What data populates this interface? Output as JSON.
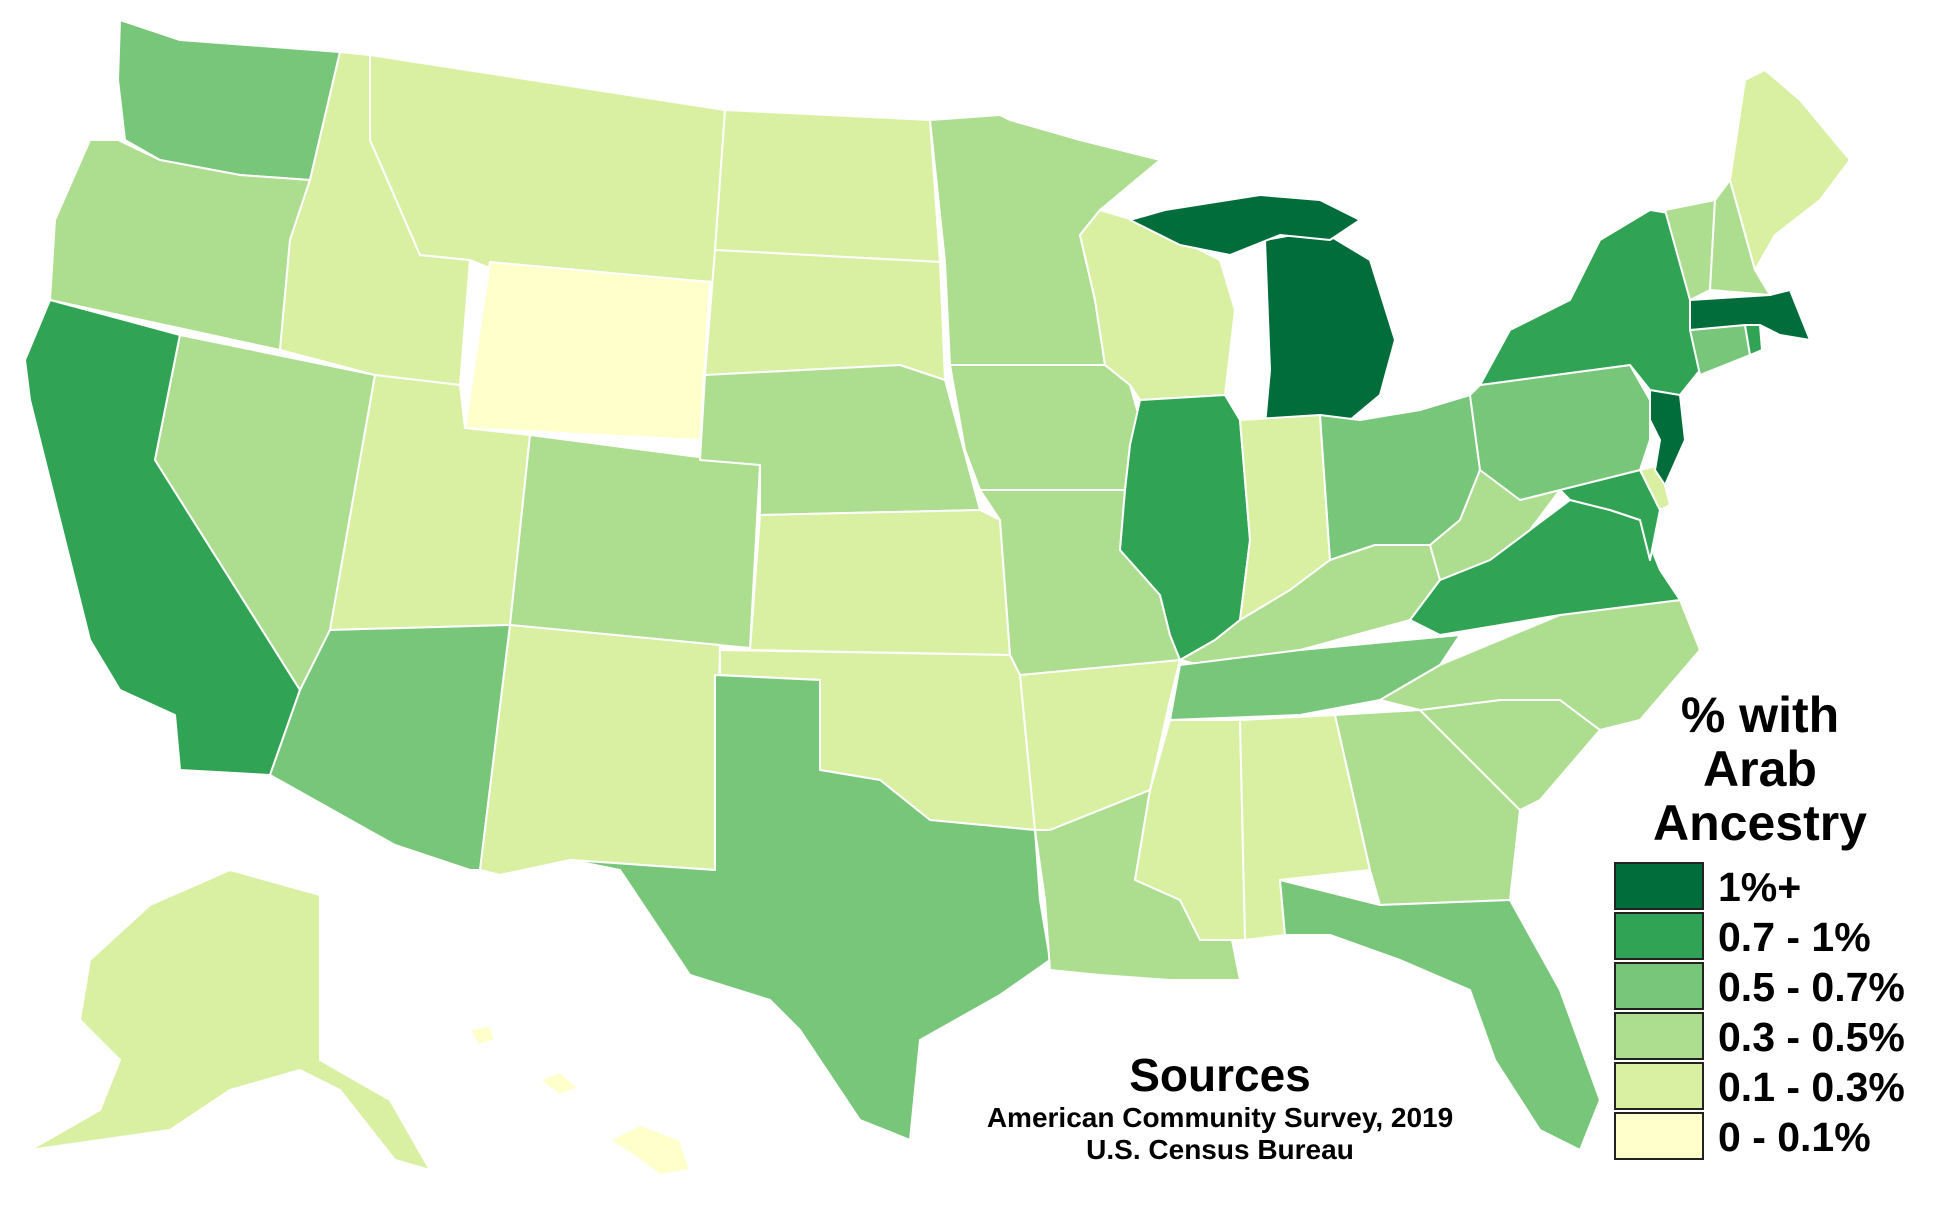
{
  "legend": {
    "title_lines": [
      "% with",
      "Arab",
      "Ancestry"
    ],
    "classes": [
      {
        "label": "1%+",
        "color": "#006d3a"
      },
      {
        "label": "0.7 - 1%",
        "color": "#31a354"
      },
      {
        "label": "0.5 - 0.7%",
        "color": "#78c679"
      },
      {
        "label": "0.3 - 0.5%",
        "color": "#addd8e"
      },
      {
        "label": "0.1 - 0.3%",
        "color": "#d9f0a3"
      },
      {
        "label": "0 - 0.1%",
        "color": "#ffffcc"
      }
    ]
  },
  "sources": {
    "title": "Sources",
    "lines": [
      "American Community Survey, 2019",
      "U.S. Census Bureau"
    ]
  },
  "states": [
    {
      "name": "Washington",
      "class": "0.5 - 0.7%"
    },
    {
      "name": "Oregon",
      "class": "0.3 - 0.5%"
    },
    {
      "name": "California",
      "class": "0.7 - 1%"
    },
    {
      "name": "Nevada",
      "class": "0.3 - 0.5%"
    },
    {
      "name": "Idaho",
      "class": "0.1 - 0.3%"
    },
    {
      "name": "Montana",
      "class": "0.1 - 0.3%"
    },
    {
      "name": "Wyoming",
      "class": "0 - 0.1%"
    },
    {
      "name": "Utah",
      "class": "0.1 - 0.3%"
    },
    {
      "name": "Arizona",
      "class": "0.5 - 0.7%"
    },
    {
      "name": "Colorado",
      "class": "0.3 - 0.5%"
    },
    {
      "name": "New Mexico",
      "class": "0.1 - 0.3%"
    },
    {
      "name": "North Dakota",
      "class": "0.1 - 0.3%"
    },
    {
      "name": "South Dakota",
      "class": "0.1 - 0.3%"
    },
    {
      "name": "Nebraska",
      "class": "0.3 - 0.5%"
    },
    {
      "name": "Kansas",
      "class": "0.1 - 0.3%"
    },
    {
      "name": "Oklahoma",
      "class": "0.1 - 0.3%"
    },
    {
      "name": "Texas",
      "class": "0.5 - 0.7%"
    },
    {
      "name": "Minnesota",
      "class": "0.3 - 0.5%"
    },
    {
      "name": "Iowa",
      "class": "0.3 - 0.5%"
    },
    {
      "name": "Missouri",
      "class": "0.3 - 0.5%"
    },
    {
      "name": "Arkansas",
      "class": "0.1 - 0.3%"
    },
    {
      "name": "Louisiana",
      "class": "0.3 - 0.5%"
    },
    {
      "name": "Wisconsin",
      "class": "0.1 - 0.3%"
    },
    {
      "name": "Illinois",
      "class": "0.7 - 1%"
    },
    {
      "name": "Michigan",
      "class": "1%+"
    },
    {
      "name": "Indiana",
      "class": "0.1 - 0.3%"
    },
    {
      "name": "Ohio",
      "class": "0.5 - 0.7%"
    },
    {
      "name": "Kentucky",
      "class": "0.3 - 0.5%"
    },
    {
      "name": "Tennessee",
      "class": "0.5 - 0.7%"
    },
    {
      "name": "Mississippi",
      "class": "0.1 - 0.3%"
    },
    {
      "name": "Alabama",
      "class": "0.1 - 0.3%"
    },
    {
      "name": "Georgia",
      "class": "0.3 - 0.5%"
    },
    {
      "name": "Florida",
      "class": "0.5 - 0.7%"
    },
    {
      "name": "South Carolina",
      "class": "0.3 - 0.5%"
    },
    {
      "name": "North Carolina",
      "class": "0.3 - 0.5%"
    },
    {
      "name": "Virginia",
      "class": "0.7 - 1%"
    },
    {
      "name": "West Virginia",
      "class": "0.3 - 0.5%"
    },
    {
      "name": "Maryland",
      "class": "0.7 - 1%"
    },
    {
      "name": "Delaware",
      "class": "0.1 - 0.3%"
    },
    {
      "name": "Pennsylvania",
      "class": "0.5 - 0.7%"
    },
    {
      "name": "New Jersey",
      "class": "1%+"
    },
    {
      "name": "New York",
      "class": "0.7 - 1%"
    },
    {
      "name": "Connecticut",
      "class": "0.5 - 0.7%"
    },
    {
      "name": "Rhode Island",
      "class": "0.7 - 1%"
    },
    {
      "name": "Massachusetts",
      "class": "1%+"
    },
    {
      "name": "Vermont",
      "class": "0.3 - 0.5%"
    },
    {
      "name": "New Hampshire",
      "class": "0.3 - 0.5%"
    },
    {
      "name": "Maine",
      "class": "0.1 - 0.3%"
    },
    {
      "name": "Alaska",
      "class": "0.1 - 0.3%"
    },
    {
      "name": "Hawaii",
      "class": "0 - 0.1%"
    }
  ]
}
